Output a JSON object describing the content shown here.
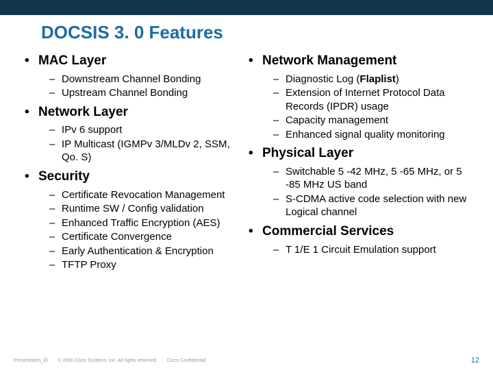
{
  "title": "DOCSIS 3. 0 Features",
  "title_color": "#1d6ca2",
  "topbar_color": "#14354b",
  "left_sections": [
    {
      "heading": "MAC Layer",
      "items": [
        "Downstream Channel Bonding",
        "Upstream Channel Bonding"
      ]
    },
    {
      "heading": "Network Layer",
      "items": [
        "IPv 6 support",
        "IP Multicast (IGMPv 3/MLDv 2, SSM, Qo. S)"
      ]
    },
    {
      "heading": "Security",
      "items": [
        "Certificate Revocation Management",
        "Runtime SW / Config validation",
        "Enhanced Traffic Encryption (AES)",
        "Certificate Convergence",
        "Early Authentication & Encryption",
        "TFTP Proxy"
      ]
    }
  ],
  "right_sections": [
    {
      "heading": "Network Management",
      "items": [
        "Diagnostic Log (<span class=\"flaplist\">Flaplist</span>)",
        "Extension of Internet Protocol Data Records (IPDR) usage",
        "Capacity management",
        "Enhanced signal quality monitoring"
      ]
    },
    {
      "heading": "Physical Layer",
      "items": [
        "Switchable 5 -42 MHz, 5 -65 MHz, or 5 -85 MHz US band",
        "S-CDMA active code selection with new Logical channel"
      ]
    },
    {
      "heading": "Commercial Services",
      "items": [
        "T 1/E 1 Circuit Emulation support"
      ]
    }
  ],
  "footer": {
    "presentation_id": "Presentation_ID",
    "copyright": "© 2006 Cisco Systems, Inc. All rights reserved.",
    "confidential": "Cisco Confidential",
    "page": "12"
  }
}
